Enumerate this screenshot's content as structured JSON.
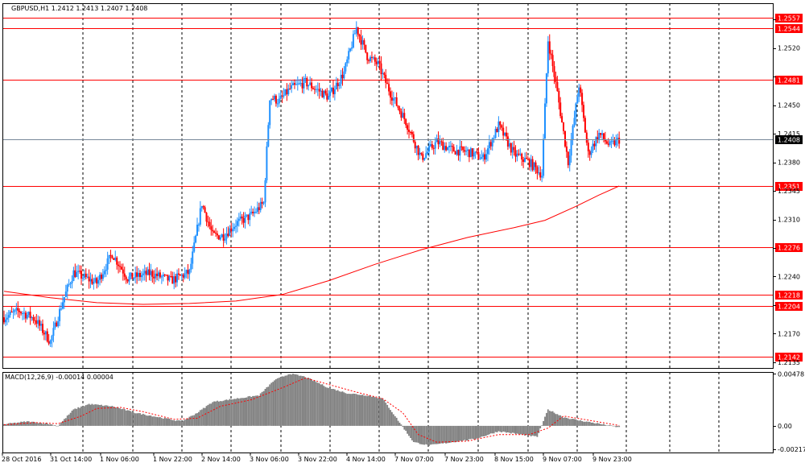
{
  "window": {
    "symbol_header": "GBPUSD,H1  1.2412 1.2413 1.2407 1.2408",
    "indicator_header": "MACD(12,26,9) -0.00014 0.00004"
  },
  "chart_data": [
    {
      "type": "candlestick",
      "symbol": "GBPUSD",
      "timeframe": "H1",
      "ohlc_current": {
        "open": 1.2412,
        "high": 1.2413,
        "low": 1.2407,
        "close": 1.2408
      },
      "current_price": 1.2408,
      "price_axis_ticks": [
        1.2135,
        1.217,
        1.2205,
        1.224,
        1.2275,
        1.231,
        1.2345,
        1.238,
        1.2415,
        1.245,
        1.2485,
        1.252,
        1.2555
      ],
      "price_tick_labels": [
        "1.2135",
        "1.2170",
        "1.2240",
        "1.2310",
        "1.2345",
        "1.2380",
        "1.2415",
        "1.2450",
        "1.2520"
      ],
      "ylim": [
        1.2128,
        1.2575
      ],
      "time_labels": [
        "28 Oct 2016",
        "31 Oct 14:00",
        "1 Nov 06:00",
        "1 Nov 22:00",
        "2 Nov 14:00",
        "3 Nov 06:00",
        "3 Nov 22:00",
        "4 Nov 14:00",
        "7 Nov 07:00",
        "7 Nov 23:00",
        "8 Nov 15:00",
        "9 Nov 07:00",
        "9 Nov 23:00"
      ],
      "horizontal_levels": [
        1.2557,
        1.2544,
        1.2481,
        1.2351,
        1.2276,
        1.2218,
        1.2204,
        1.2142
      ],
      "horizontal_level_labels": [
        "1.2557",
        "1.2544",
        "1.2481",
        "1.2351",
        "1.2276",
        "1.2218",
        "1.2204",
        "1.2142"
      ],
      "moving_average": [
        [
          0,
          1.2222
        ],
        [
          30,
          1.2214
        ],
        [
          60,
          1.2208
        ],
        [
          90,
          1.2206
        ],
        [
          120,
          1.2207
        ],
        [
          150,
          1.221
        ],
        [
          180,
          1.2218
        ],
        [
          210,
          1.2235
        ],
        [
          240,
          1.2255
        ],
        [
          270,
          1.2273
        ],
        [
          300,
          1.2288
        ],
        [
          330,
          1.23
        ],
        [
          350,
          1.2309
        ],
        [
          370,
          1.2326
        ],
        [
          385,
          1.234
        ],
        [
          398,
          1.2351
        ]
      ],
      "close_path": [
        [
          0,
          1.219
        ],
        [
          10,
          1.2198
        ],
        [
          20,
          1.2188
        ],
        [
          30,
          1.216
        ],
        [
          38,
          1.221
        ],
        [
          45,
          1.2245
        ],
        [
          60,
          1.2232
        ],
        [
          70,
          1.2268
        ],
        [
          80,
          1.2238
        ],
        [
          95,
          1.2244
        ],
        [
          108,
          1.2235
        ],
        [
          120,
          1.2245
        ],
        [
          128,
          1.233
        ],
        [
          135,
          1.229
        ],
        [
          142,
          1.229
        ],
        [
          150,
          1.2305
        ],
        [
          160,
          1.2315
        ],
        [
          168,
          1.233
        ],
        [
          172,
          1.246
        ],
        [
          178,
          1.2455
        ],
        [
          185,
          1.247
        ],
        [
          195,
          1.2478
        ],
        [
          210,
          1.246
        ],
        [
          220,
          1.249
        ],
        [
          228,
          1.2545
        ],
        [
          235,
          1.251
        ],
        [
          242,
          1.25
        ],
        [
          250,
          1.2465
        ],
        [
          260,
          1.243
        ],
        [
          270,
          1.2385
        ],
        [
          280,
          1.2405
        ],
        [
          290,
          1.2395
        ],
        [
          300,
          1.2393
        ],
        [
          310,
          1.2385
        ],
        [
          320,
          1.2425
        ],
        [
          330,
          1.239
        ],
        [
          340,
          1.238
        ],
        [
          348,
          1.2365
        ],
        [
          352,
          1.253
        ],
        [
          358,
          1.2465
        ],
        [
          365,
          1.238
        ],
        [
          372,
          1.2475
        ],
        [
          378,
          1.239
        ],
        [
          385,
          1.2415
        ],
        [
          392,
          1.24
        ],
        [
          398,
          1.2408
        ]
      ],
      "macd": {
        "title": "MACD(12,26,9)",
        "main": -0.00014,
        "signal": 4e-05,
        "axis_ticks": [
          0.00478,
          0.0,
          -0.00217
        ],
        "axis_tick_labels": [
          "0.00478",
          "0.00",
          "-0.00217"
        ],
        "ylim": [
          -0.00245,
          0.00495
        ],
        "histogram_path": [
          [
            0,
            0.00015
          ],
          [
            15,
            0.0004
          ],
          [
            28,
            0.0002
          ],
          [
            35,
            0.0
          ],
          [
            45,
            0.0015
          ],
          [
            55,
            0.002
          ],
          [
            70,
            0.0018
          ],
          [
            85,
            0.0012
          ],
          [
            100,
            0.0008
          ],
          [
            115,
            0.0004
          ],
          [
            125,
            0.0012
          ],
          [
            135,
            0.0022
          ],
          [
            150,
            0.0025
          ],
          [
            165,
            0.0028
          ],
          [
            175,
            0.0042
          ],
          [
            185,
            0.0048
          ],
          [
            195,
            0.0045
          ],
          [
            210,
            0.0035
          ],
          [
            222,
            0.003
          ],
          [
            235,
            0.0028
          ],
          [
            245,
            0.0025
          ],
          [
            255,
            0.0005
          ],
          [
            265,
            -0.0015
          ],
          [
            275,
            -0.0018
          ],
          [
            290,
            -0.0015
          ],
          [
            305,
            -0.0012
          ],
          [
            320,
            -0.0005
          ],
          [
            335,
            -0.0008
          ],
          [
            345,
            -0.001
          ],
          [
            352,
            0.0015
          ],
          [
            362,
            0.0008
          ],
          [
            372,
            0.0005
          ],
          [
            385,
            0.0002
          ],
          [
            398,
            -0.00014
          ]
        ],
        "signal_path": [
          [
            0,
            0.0001
          ],
          [
            20,
            0.0003
          ],
          [
            35,
            0.0002
          ],
          [
            50,
            0.0009
          ],
          [
            60,
            0.0016
          ],
          [
            75,
            0.0017
          ],
          [
            90,
            0.0013
          ],
          [
            110,
            0.0006
          ],
          [
            125,
            0.0007
          ],
          [
            140,
            0.0018
          ],
          [
            160,
            0.0024
          ],
          [
            180,
            0.0035
          ],
          [
            195,
            0.0044
          ],
          [
            210,
            0.0038
          ],
          [
            228,
            0.0031
          ],
          [
            245,
            0.0025
          ],
          [
            258,
            0.0012
          ],
          [
            268,
            -0.0008
          ],
          [
            280,
            -0.0015
          ],
          [
            300,
            -0.0014
          ],
          [
            320,
            -0.0008
          ],
          [
            340,
            -0.0008
          ],
          [
            352,
            -0.0002
          ],
          [
            362,
            0.0009
          ],
          [
            375,
            0.0006
          ],
          [
            398,
            4e-05
          ]
        ]
      }
    }
  ],
  "colors": {
    "bull": "#1e90ff",
    "bear": "#ff0000",
    "level": "#ff0000",
    "moving_average": "#ff0000",
    "price_line": "#778899",
    "grid": "#000000",
    "histogram": "#808080",
    "signal": "#ff0000"
  }
}
